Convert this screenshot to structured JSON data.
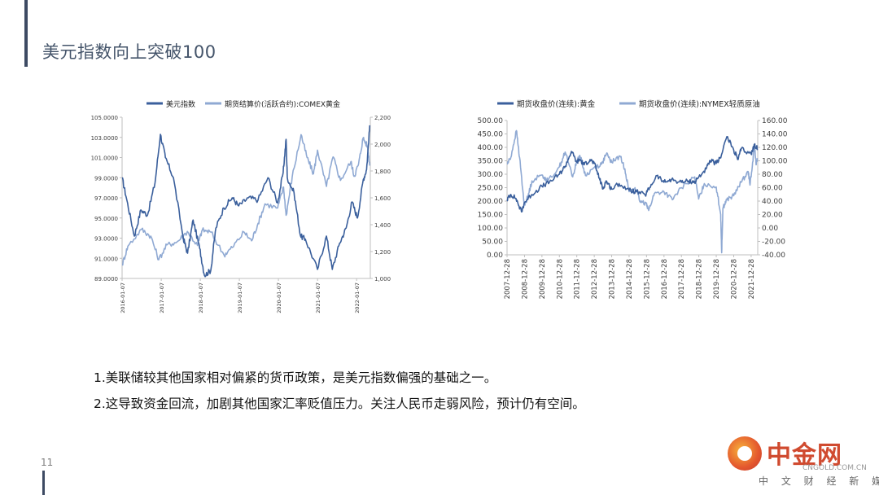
{
  "page": {
    "title": "美元指数向上突破100",
    "page_number": "11"
  },
  "bullets": [
    "1.美联储较其他国家相对偏紧的货币政策，是美元指数偏强的基础之一。",
    "2.这导致资金回流，加剧其他国家汇率贬值压力。关注人民币走弱风险，预计仍有空间。"
  ],
  "logo": {
    "name_cn": "中金网",
    "domain": "CNGOLD.COM.CN",
    "tagline": "中 文 财 经 新 媒 体"
  },
  "colors": {
    "title": "#44546a",
    "series_dark": "#3a5f9c",
    "series_light": "#8fa9d3"
  },
  "chart_data": [
    {
      "type": "line",
      "title": "",
      "legend_position": "top",
      "x_ticks": [
        "2016-01-07",
        "2017-01-07",
        "2018-01-07",
        "2019-01-07",
        "2020-01-07",
        "2021-01-07",
        "2022-01-07"
      ],
      "xlim": [
        "2016-01-07",
        "2022-05-15"
      ],
      "y_left": {
        "lim": [
          89,
          105
        ],
        "ticks": [
          "89.0000",
          "91.0000",
          "93.0000",
          "95.0000",
          "97.0000",
          "99.0000",
          "101.0000",
          "103.0000",
          "105.0000"
        ]
      },
      "y_right": {
        "lim": [
          1000,
          2200
        ],
        "ticks": [
          "1,000.00",
          "1,200.00",
          "1,400.00",
          "1,600.00",
          "1,800.00",
          "2,000.00",
          "2,200.00"
        ]
      },
      "series": [
        {
          "name": "美元指数",
          "axis": "left",
          "color": "#3a5f9c",
          "points": [
            [
              "2016-01-07",
              99.0
            ],
            [
              "2016-02-20",
              96.8
            ],
            [
              "2016-05-01",
              93.2
            ],
            [
              "2016-07-01",
              95.8
            ],
            [
              "2016-09-01",
              95.3
            ],
            [
              "2016-11-10",
              98.5
            ],
            [
              "2016-12-30",
              103.3
            ],
            [
              "2017-02-15",
              101.0
            ],
            [
              "2017-05-01",
              99.0
            ],
            [
              "2017-08-01",
              93.0
            ],
            [
              "2017-09-10",
              91.5
            ],
            [
              "2017-11-01",
              94.8
            ],
            [
              "2018-01-01",
              92.0
            ],
            [
              "2018-02-15",
              89.3
            ],
            [
              "2018-04-15",
              89.8
            ],
            [
              "2018-06-01",
              94.0
            ],
            [
              "2018-08-15",
              96.0
            ],
            [
              "2018-11-01",
              97.0
            ],
            [
              "2019-01-01",
              96.2
            ],
            [
              "2019-04-01",
              97.0
            ],
            [
              "2019-07-01",
              96.8
            ],
            [
              "2019-10-01",
              99.0
            ],
            [
              "2019-12-31",
              96.5
            ],
            [
              "2020-02-20",
              99.5
            ],
            [
              "2020-03-19",
              102.8
            ],
            [
              "2020-03-30",
              99.0
            ],
            [
              "2020-06-01",
              97.5
            ],
            [
              "2020-08-01",
              93.2
            ],
            [
              "2020-09-15",
              92.9
            ],
            [
              "2021-01-06",
              89.9
            ],
            [
              "2021-03-31",
              93.2
            ],
            [
              "2021-05-25",
              89.9
            ],
            [
              "2021-08-01",
              92.5
            ],
            [
              "2021-10-01",
              94.0
            ],
            [
              "2021-11-25",
              96.6
            ],
            [
              "2022-01-15",
              95.0
            ],
            [
              "2022-03-10",
              98.8
            ],
            [
              "2022-04-10",
              99.8
            ],
            [
              "2022-05-10",
              104.2
            ]
          ]
        },
        {
          "name": "期货结算价(活跃合约):COMEX黄金",
          "axis": "right",
          "color": "#8fa9d3",
          "points": [
            [
              "2016-01-07",
              1100
            ],
            [
              "2016-03-01",
              1240
            ],
            [
              "2016-07-06",
              1365
            ],
            [
              "2016-10-01",
              1315
            ],
            [
              "2016-12-15",
              1140
            ],
            [
              "2017-03-01",
              1250
            ],
            [
              "2017-06-01",
              1270
            ],
            [
              "2017-09-08",
              1350
            ],
            [
              "2017-12-12",
              1245
            ],
            [
              "2018-01-25",
              1360
            ],
            [
              "2018-04-15",
              1345
            ],
            [
              "2018-08-16",
              1175
            ],
            [
              "2018-11-01",
              1230
            ],
            [
              "2019-02-20",
              1345
            ],
            [
              "2019-05-01",
              1280
            ],
            [
              "2019-07-01",
              1410
            ],
            [
              "2019-09-04",
              1555
            ],
            [
              "2019-12-31",
              1525
            ],
            [
              "2020-02-24",
              1680
            ],
            [
              "2020-03-19",
              1470
            ],
            [
              "2020-05-15",
              1755
            ],
            [
              "2020-08-06",
              2070
            ],
            [
              "2020-10-01",
              1900
            ],
            [
              "2020-11-30",
              1780
            ],
            [
              "2021-01-06",
              1955
            ],
            [
              "2021-03-31",
              1685
            ],
            [
              "2021-06-01",
              1905
            ],
            [
              "2021-08-09",
              1730
            ],
            [
              "2021-11-15",
              1870
            ],
            [
              "2021-12-15",
              1760
            ],
            [
              "2022-01-25",
              1850
            ],
            [
              "2022-03-08",
              2045
            ],
            [
              "2022-04-18",
              1985
            ],
            [
              "2022-05-10",
              1840
            ]
          ]
        }
      ]
    },
    {
      "type": "line",
      "title": "",
      "legend_position": "top",
      "x_ticks": [
        "2007-12-28",
        "2008-12-28",
        "2009-12-28",
        "2010-12-28",
        "2011-12-28",
        "2012-12-28",
        "2013-12-28",
        "2014-12-28",
        "2015-12-28",
        "2016-12-28",
        "2017-12-28",
        "2018-12-28",
        "2019-12-28",
        "2020-12-28",
        "2021-12-28"
      ],
      "xlim": [
        "2007-12-28",
        "2022-05-15"
      ],
      "y_left": {
        "lim": [
          0,
          500
        ],
        "ticks": [
          "0.00",
          "50.00",
          "100.00",
          "150.00",
          "200.00",
          "250.00",
          "300.00",
          "350.00",
          "400.00",
          "450.00",
          "500.00"
        ]
      },
      "y_right": {
        "lim": [
          -40,
          160
        ],
        "ticks": [
          "-40.00",
          "-20.00",
          "0.00",
          "20.00",
          "40.00",
          "60.00",
          "80.00",
          "100.00",
          "120.00",
          "140.00",
          "160.00"
        ]
      },
      "series": [
        {
          "name": "期货收盘价(连续):黄金",
          "axis": "left",
          "color": "#3a5f9c",
          "points": [
            [
              "2007-12-28",
              205
            ],
            [
              "2008-03-15",
              225
            ],
            [
              "2008-07-01",
              210
            ],
            [
              "2008-10-25",
              160
            ],
            [
              "2008-12-28",
              195
            ],
            [
              "2009-06-01",
              225
            ],
            [
              "2009-12-28",
              255
            ],
            [
              "2010-06-01",
              270
            ],
            [
              "2010-12-28",
              300
            ],
            [
              "2011-05-01",
              330
            ],
            [
              "2011-09-06",
              385
            ],
            [
              "2011-12-28",
              345
            ],
            [
              "2012-03-01",
              355
            ],
            [
              "2012-06-01",
              335
            ],
            [
              "2012-10-01",
              355
            ],
            [
              "2012-12-28",
              340
            ],
            [
              "2013-04-15",
              285
            ],
            [
              "2013-06-28",
              245
            ],
            [
              "2013-09-01",
              275
            ],
            [
              "2013-12-28",
              245
            ],
            [
              "2014-06-01",
              265
            ],
            [
              "2014-12-28",
              240
            ],
            [
              "2015-06-01",
              235
            ],
            [
              "2015-12-01",
              222
            ],
            [
              "2016-03-01",
              250
            ],
            [
              "2016-08-01",
              295
            ],
            [
              "2016-12-28",
              270
            ],
            [
              "2017-06-01",
              280
            ],
            [
              "2017-12-28",
              270
            ],
            [
              "2018-06-01",
              275
            ],
            [
              "2018-10-01",
              270
            ],
            [
              "2018-12-28",
              290
            ],
            [
              "2019-06-01",
              320
            ],
            [
              "2019-09-01",
              350
            ],
            [
              "2019-12-28",
              340
            ],
            [
              "2020-03-15",
              360
            ],
            [
              "2020-08-06",
              440
            ],
            [
              "2020-12-28",
              390
            ],
            [
              "2021-03-31",
              355
            ],
            [
              "2021-06-01",
              395
            ],
            [
              "2021-12-28",
              375
            ],
            [
              "2022-03-08",
              410
            ],
            [
              "2022-05-10",
              395
            ]
          ]
        },
        {
          "name": "期货收盘价(连续):NYMEX轻质原油",
          "axis": "right",
          "color": "#8fa9d3",
          "points": [
            [
              "2007-12-28",
              95
            ],
            [
              "2008-03-15",
              105
            ],
            [
              "2008-07-11",
              145
            ],
            [
              "2008-09-15",
              105
            ],
            [
              "2008-12-21",
              35
            ],
            [
              "2009-03-01",
              45
            ],
            [
              "2009-06-01",
              70
            ],
            [
              "2009-12-28",
              79
            ],
            [
              "2010-05-01",
              70
            ],
            [
              "2010-12-28",
              91
            ],
            [
              "2011-04-29",
              113
            ],
            [
              "2011-10-04",
              76
            ],
            [
              "2011-12-28",
              99
            ],
            [
              "2012-03-01",
              108
            ],
            [
              "2012-06-28",
              78
            ],
            [
              "2012-12-28",
              90
            ],
            [
              "2013-06-01",
              95
            ],
            [
              "2013-09-06",
              110
            ],
            [
              "2013-12-28",
              98
            ],
            [
              "2014-06-20",
              107
            ],
            [
              "2014-10-01",
              88
            ],
            [
              "2014-12-28",
              54
            ],
            [
              "2015-05-01",
              60
            ],
            [
              "2015-08-24",
              38
            ],
            [
              "2015-12-28",
              37
            ],
            [
              "2016-02-11",
              26
            ],
            [
              "2016-06-08",
              51
            ],
            [
              "2016-12-28",
              54
            ],
            [
              "2017-06-21",
              42
            ],
            [
              "2017-12-28",
              60
            ],
            [
              "2018-10-03",
              76
            ],
            [
              "2018-12-24",
              43
            ],
            [
              "2019-04-23",
              66
            ],
            [
              "2019-12-28",
              61
            ],
            [
              "2020-03-30",
              20
            ],
            [
              "2020-04-20",
              -37
            ],
            [
              "2020-05-15",
              29
            ],
            [
              "2020-08-01",
              42
            ],
            [
              "2020-12-28",
              48
            ],
            [
              "2021-06-01",
              68
            ],
            [
              "2021-10-26",
              84
            ],
            [
              "2021-12-01",
              66
            ],
            [
              "2021-12-28",
              76
            ],
            [
              "2022-03-08",
              123
            ],
            [
              "2022-04-11",
              94
            ],
            [
              "2022-05-10",
              104
            ]
          ]
        }
      ]
    }
  ]
}
